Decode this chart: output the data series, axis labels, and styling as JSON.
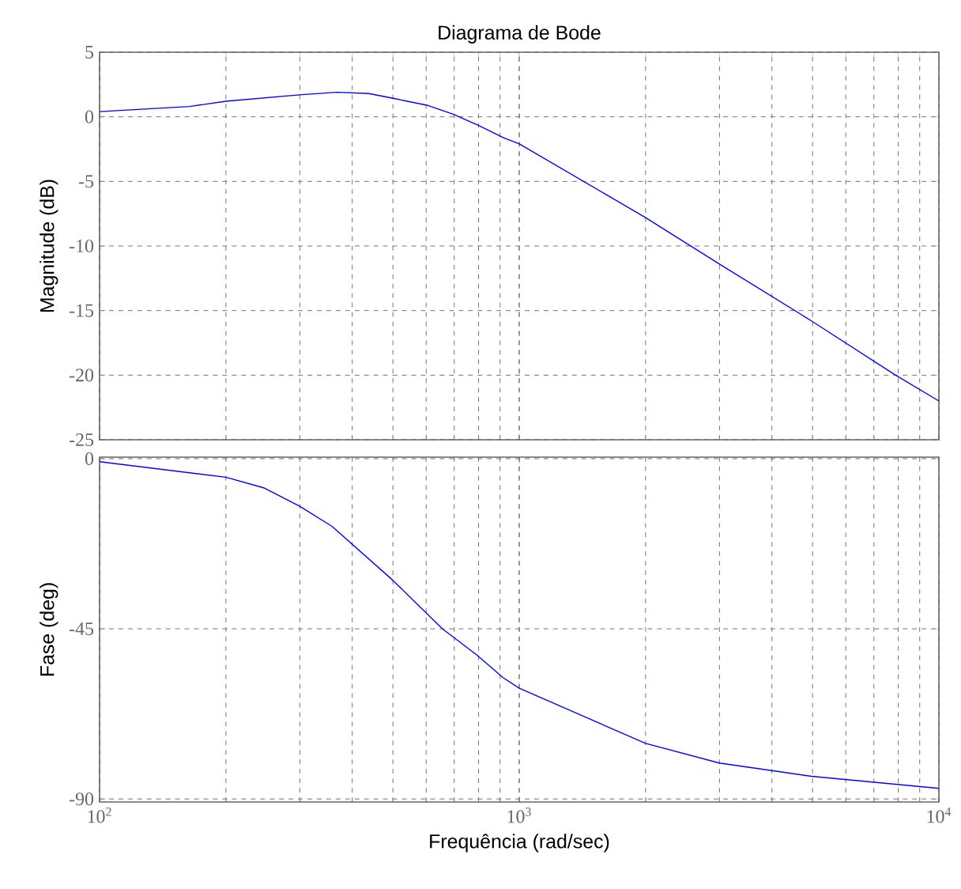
{
  "chart_data": [
    {
      "type": "line",
      "title": "Diagrama de Bode",
      "ylabel": "Magnitude (dB)",
      "log": "x",
      "grid": true,
      "tick_labels": "y",
      "xlim": [
        100,
        10000
      ],
      "ylim": [
        -25,
        5
      ],
      "xticks": [
        {
          "value": 100,
          "label": null
        },
        {
          "value": 1000,
          "label": null
        },
        {
          "value": 10000,
          "label": null
        }
      ],
      "yticks": [
        -25,
        -20,
        -15,
        -10,
        -5,
        0,
        5
      ],
      "series": [
        {
          "color": "#0000ff",
          "x": [
            100,
            164,
            200,
            300,
            368,
            438,
            506,
            602,
            696,
            804,
            915,
            1000,
            2000,
            3000,
            4970,
            7890,
            10000
          ],
          "values": [
            0.4,
            0.8,
            1.2,
            1.7,
            1.9,
            1.8,
            1.4,
            0.9,
            0.2,
            -0.7,
            -1.6,
            -2.1,
            -7.8,
            -11.4,
            -15.8,
            -20.0,
            -22.0
          ]
        }
      ]
    },
    {
      "type": "line",
      "ylabel": "Fase (deg)",
      "xlabel": "Frequência  (rad/sec)",
      "log": "x",
      "grid": true,
      "xlim": [
        100,
        10000
      ],
      "ylim": [
        -90.8,
        0.4
      ],
      "xticks": [
        {
          "value": 100,
          "label": "10$^{2}$"
        },
        {
          "value": 1000,
          "label": "10$^{3}$"
        },
        {
          "value": 10000,
          "label": "10$^{4}$"
        }
      ],
      "yticks": [
        -90,
        -45,
        0
      ],
      "series": [
        {
          "color": "#0000ff",
          "x": [
            100,
            200,
            246,
            300,
            358,
            498,
            656,
            792,
            915,
            1000,
            2000,
            3000,
            4970,
            10000
          ],
          "values": [
            -0.8,
            -4.9,
            -7.7,
            -12.6,
            -17.9,
            -32,
            -45,
            -51.9,
            -57.9,
            -60.7,
            -75.3,
            -80.5,
            -84,
            -87.2
          ]
        }
      ]
    }
  ]
}
